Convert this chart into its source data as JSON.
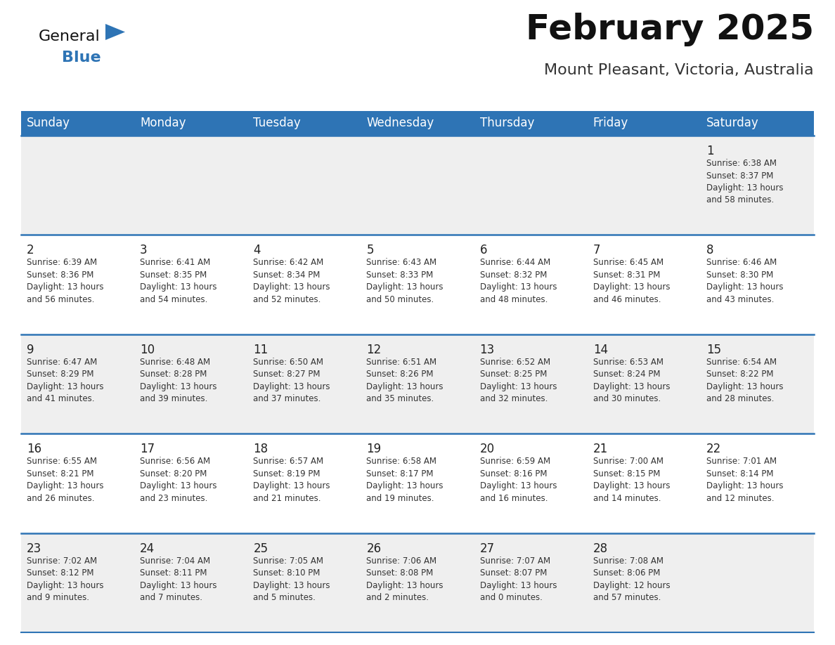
{
  "title": "February 2025",
  "subtitle": "Mount Pleasant, Victoria, Australia",
  "days_of_week": [
    "Sunday",
    "Monday",
    "Tuesday",
    "Wednesday",
    "Thursday",
    "Friday",
    "Saturday"
  ],
  "header_bg_color": "#2E74B5",
  "header_text_color": "#FFFFFF",
  "row_bg_even": "#EFEFEF",
  "row_bg_odd": "#FFFFFF",
  "cell_text_color": "#333333",
  "day_num_color": "#222222",
  "separator_color": "#2E74B5",
  "title_color": "#111111",
  "subtitle_color": "#333333",
  "logo_general_color": "#111111",
  "logo_blue_color": "#2E74B5",
  "logo_triangle_color": "#2E74B5",
  "calendar_data": [
    [
      {
        "day": null,
        "info": null
      },
      {
        "day": null,
        "info": null
      },
      {
        "day": null,
        "info": null
      },
      {
        "day": null,
        "info": null
      },
      {
        "day": null,
        "info": null
      },
      {
        "day": null,
        "info": null
      },
      {
        "day": 1,
        "info": "Sunrise: 6:38 AM\nSunset: 8:37 PM\nDaylight: 13 hours\nand 58 minutes."
      }
    ],
    [
      {
        "day": 2,
        "info": "Sunrise: 6:39 AM\nSunset: 8:36 PM\nDaylight: 13 hours\nand 56 minutes."
      },
      {
        "day": 3,
        "info": "Sunrise: 6:41 AM\nSunset: 8:35 PM\nDaylight: 13 hours\nand 54 minutes."
      },
      {
        "day": 4,
        "info": "Sunrise: 6:42 AM\nSunset: 8:34 PM\nDaylight: 13 hours\nand 52 minutes."
      },
      {
        "day": 5,
        "info": "Sunrise: 6:43 AM\nSunset: 8:33 PM\nDaylight: 13 hours\nand 50 minutes."
      },
      {
        "day": 6,
        "info": "Sunrise: 6:44 AM\nSunset: 8:32 PM\nDaylight: 13 hours\nand 48 minutes."
      },
      {
        "day": 7,
        "info": "Sunrise: 6:45 AM\nSunset: 8:31 PM\nDaylight: 13 hours\nand 46 minutes."
      },
      {
        "day": 8,
        "info": "Sunrise: 6:46 AM\nSunset: 8:30 PM\nDaylight: 13 hours\nand 43 minutes."
      }
    ],
    [
      {
        "day": 9,
        "info": "Sunrise: 6:47 AM\nSunset: 8:29 PM\nDaylight: 13 hours\nand 41 minutes."
      },
      {
        "day": 10,
        "info": "Sunrise: 6:48 AM\nSunset: 8:28 PM\nDaylight: 13 hours\nand 39 minutes."
      },
      {
        "day": 11,
        "info": "Sunrise: 6:50 AM\nSunset: 8:27 PM\nDaylight: 13 hours\nand 37 minutes."
      },
      {
        "day": 12,
        "info": "Sunrise: 6:51 AM\nSunset: 8:26 PM\nDaylight: 13 hours\nand 35 minutes."
      },
      {
        "day": 13,
        "info": "Sunrise: 6:52 AM\nSunset: 8:25 PM\nDaylight: 13 hours\nand 32 minutes."
      },
      {
        "day": 14,
        "info": "Sunrise: 6:53 AM\nSunset: 8:24 PM\nDaylight: 13 hours\nand 30 minutes."
      },
      {
        "day": 15,
        "info": "Sunrise: 6:54 AM\nSunset: 8:22 PM\nDaylight: 13 hours\nand 28 minutes."
      }
    ],
    [
      {
        "day": 16,
        "info": "Sunrise: 6:55 AM\nSunset: 8:21 PM\nDaylight: 13 hours\nand 26 minutes."
      },
      {
        "day": 17,
        "info": "Sunrise: 6:56 AM\nSunset: 8:20 PM\nDaylight: 13 hours\nand 23 minutes."
      },
      {
        "day": 18,
        "info": "Sunrise: 6:57 AM\nSunset: 8:19 PM\nDaylight: 13 hours\nand 21 minutes."
      },
      {
        "day": 19,
        "info": "Sunrise: 6:58 AM\nSunset: 8:17 PM\nDaylight: 13 hours\nand 19 minutes."
      },
      {
        "day": 20,
        "info": "Sunrise: 6:59 AM\nSunset: 8:16 PM\nDaylight: 13 hours\nand 16 minutes."
      },
      {
        "day": 21,
        "info": "Sunrise: 7:00 AM\nSunset: 8:15 PM\nDaylight: 13 hours\nand 14 minutes."
      },
      {
        "day": 22,
        "info": "Sunrise: 7:01 AM\nSunset: 8:14 PM\nDaylight: 13 hours\nand 12 minutes."
      }
    ],
    [
      {
        "day": 23,
        "info": "Sunrise: 7:02 AM\nSunset: 8:12 PM\nDaylight: 13 hours\nand 9 minutes."
      },
      {
        "day": 24,
        "info": "Sunrise: 7:04 AM\nSunset: 8:11 PM\nDaylight: 13 hours\nand 7 minutes."
      },
      {
        "day": 25,
        "info": "Sunrise: 7:05 AM\nSunset: 8:10 PM\nDaylight: 13 hours\nand 5 minutes."
      },
      {
        "day": 26,
        "info": "Sunrise: 7:06 AM\nSunset: 8:08 PM\nDaylight: 13 hours\nand 2 minutes."
      },
      {
        "day": 27,
        "info": "Sunrise: 7:07 AM\nSunset: 8:07 PM\nDaylight: 13 hours\nand 0 minutes."
      },
      {
        "day": 28,
        "info": "Sunrise: 7:08 AM\nSunset: 8:06 PM\nDaylight: 12 hours\nand 57 minutes."
      },
      {
        "day": null,
        "info": null
      }
    ]
  ]
}
